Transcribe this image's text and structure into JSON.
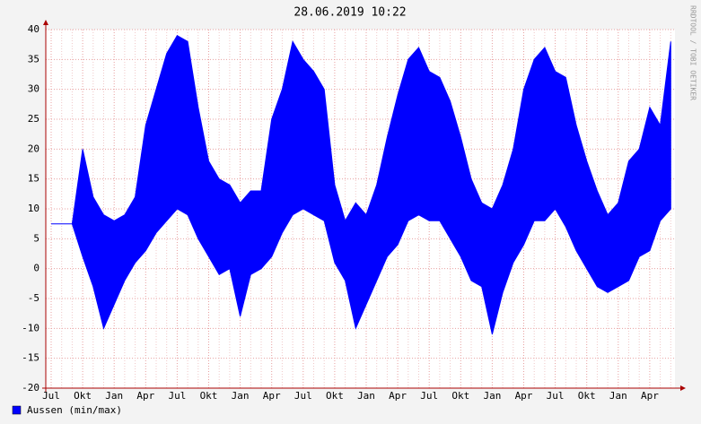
{
  "chart_data": {
    "type": "range-area",
    "title": "28.06.2019 10:22",
    "watermark": "RRDTOOL / TOBI OETIKER",
    "categories": [
      "Jul",
      null,
      null,
      "Okt",
      null,
      null,
      "Jan",
      null,
      null,
      "Apr",
      null,
      null,
      "Jul",
      null,
      null,
      "Okt",
      null,
      null,
      "Jan",
      null,
      null,
      "Apr",
      null,
      null,
      "Jul",
      null,
      null,
      "Okt",
      null,
      null,
      "Jan",
      null,
      null,
      "Apr",
      null,
      null,
      "Jul",
      null,
      null,
      "Okt",
      null,
      null,
      "Jan",
      null,
      null,
      "Apr",
      null,
      null,
      "Jul",
      null,
      null,
      "Okt",
      null,
      null,
      "Jan",
      null,
      null,
      "Apr",
      null,
      null
    ],
    "series": [
      {
        "name": "Aussen (min/max)",
        "color": "#0000ff",
        "low": [
          7.5,
          7.5,
          7.5,
          2,
          -3,
          -10,
          -6,
          -2,
          1,
          3,
          6,
          8,
          10,
          9,
          5,
          2,
          -1,
          0,
          -8,
          -1,
          0,
          2,
          6,
          9,
          10,
          9,
          8,
          1,
          -2,
          -10,
          -6,
          -2,
          2,
          4,
          8,
          9,
          8,
          8,
          5,
          2,
          -2,
          -3,
          -11,
          -4,
          1,
          4,
          8,
          8,
          10,
          7,
          3,
          0,
          -3,
          -4,
          -3,
          -2,
          2,
          3,
          8,
          10
        ],
        "high": [
          7.5,
          7.5,
          7.5,
          20,
          12,
          9,
          8,
          9,
          12,
          24,
          30,
          36,
          39,
          38,
          27,
          18,
          15,
          14,
          11,
          13,
          13,
          25,
          30,
          38,
          35,
          33,
          30,
          14,
          8,
          11,
          9,
          14,
          22,
          29,
          35,
          37,
          33,
          32,
          28,
          22,
          15,
          11,
          10,
          14,
          20,
          30,
          35,
          37,
          33,
          32,
          24,
          18,
          13,
          9,
          11,
          18,
          20,
          27,
          24,
          38
        ]
      }
    ],
    "ylim": [
      -20,
      40
    ],
    "yticks": [
      -20,
      -15,
      -10,
      -5,
      0,
      5,
      10,
      15,
      20,
      25,
      30,
      35,
      40
    ],
    "grid": true
  }
}
